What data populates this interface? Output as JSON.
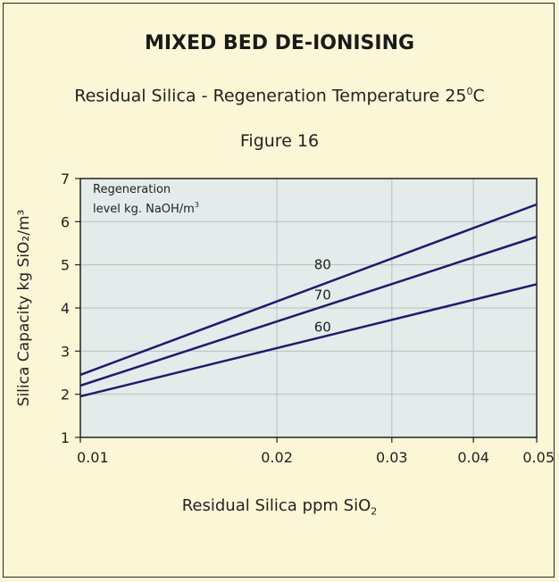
{
  "title": "MIXED BED DE-IONISING",
  "subtitle": {
    "prefix": "Residual Silica - Regeneration Temperature 25",
    "sup": "0",
    "suffix": "C"
  },
  "figure_label": "Figure 16",
  "chart_data": {
    "type": "line",
    "x_scale": "log",
    "xlim": [
      0.01,
      0.05
    ],
    "ylim": [
      1,
      7
    ],
    "x_ticks": [
      "0.01",
      "0.02",
      "0.03",
      "0.04",
      "0.05"
    ],
    "y_ticks": [
      "1",
      "2",
      "3",
      "4",
      "5",
      "6",
      "7"
    ],
    "xlabel": {
      "prefix": "Residual Silica ppm SiO",
      "sub": "2"
    },
    "ylabel": "Silica Capacity kg SiO₂/m³",
    "legend": {
      "line1": "Regeneration",
      "line2_prefix": "level kg. NaOH/m",
      "line2_sup": "3"
    },
    "grid": true,
    "colors": {
      "plot_bg": "#e3ecea",
      "line": "#1f1a6e",
      "grid": "#b8c0bf",
      "page_bg": "#fbf7d6"
    },
    "series": [
      {
        "name": "80",
        "x": [
          0.01,
          0.05
        ],
        "y": [
          2.45,
          6.4
        ]
      },
      {
        "name": "70",
        "x": [
          0.01,
          0.05
        ],
        "y": [
          2.2,
          5.65
        ]
      },
      {
        "name": "60",
        "x": [
          0.01,
          0.05
        ],
        "y": [
          1.95,
          4.55
        ]
      }
    ],
    "series_label_pos": [
      {
        "name": "80",
        "x": 0.0235,
        "y": 4.9
      },
      {
        "name": "70",
        "x": 0.0235,
        "y": 4.2
      },
      {
        "name": "60",
        "x": 0.0235,
        "y": 3.45
      }
    ]
  }
}
